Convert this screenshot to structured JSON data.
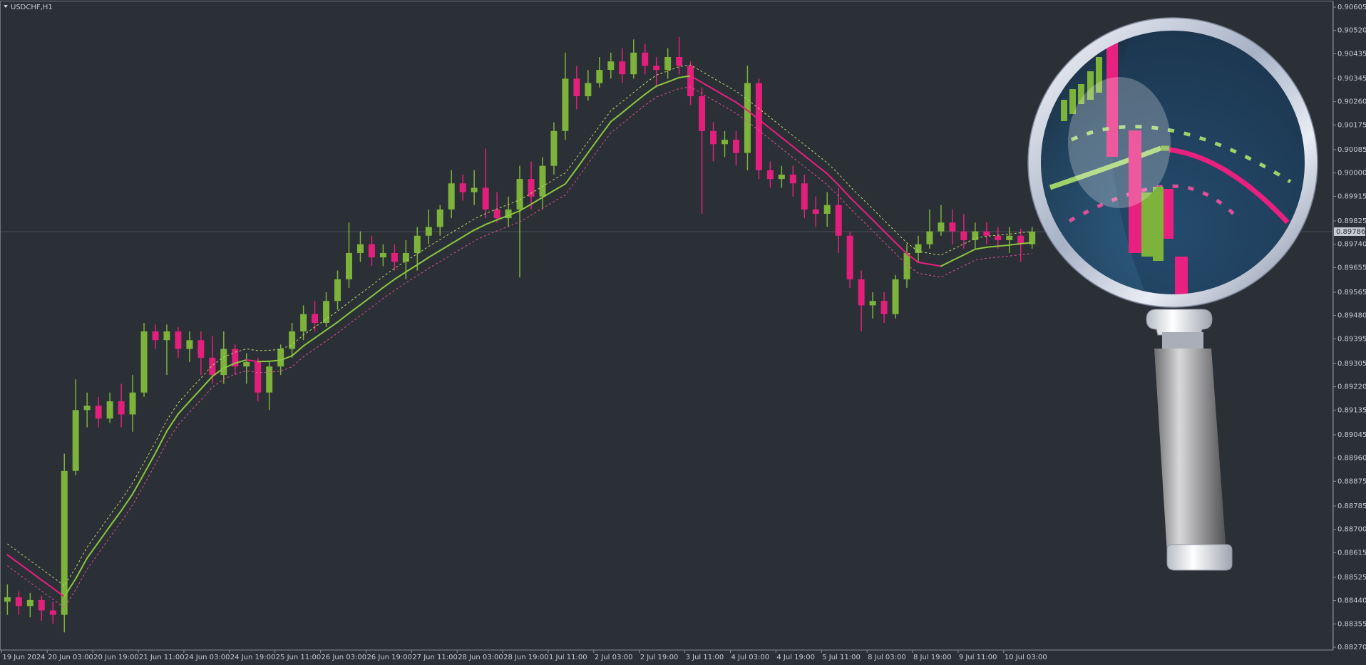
{
  "chart_data": {
    "type": "candlestick",
    "title": "USDCHF,H1",
    "categories": [
      "19 Jun 2024",
      null,
      null,
      null,
      "20 Jun 03:00",
      null,
      null,
      null,
      "20 Jun 19:00",
      null,
      null,
      null,
      "21 Jun 11:00",
      null,
      null,
      null,
      "24 Jun 03:00",
      null,
      null,
      null,
      "24 Jun 19:00",
      null,
      null,
      null,
      "25 Jun 11:00",
      null,
      null,
      null,
      "26 Jun 03:00",
      null,
      null,
      null,
      "26 Jun 19:00",
      null,
      null,
      null,
      "27 Jun 11:00",
      null,
      null,
      null,
      "28 Jun 03:00",
      null,
      null,
      null,
      "28 Jun 19:00",
      null,
      null,
      null,
      "1 Jul 11:00",
      null,
      null,
      null,
      "2 Jul 03:00",
      null,
      null,
      null,
      "2 Jul 19:00",
      null,
      null,
      null,
      "3 Jul 11:00",
      null,
      null,
      null,
      "4 Jul 03:00",
      null,
      null,
      null,
      "4 Jul 19:00",
      null,
      null,
      null,
      "5 Jul 11:00",
      null,
      null,
      null,
      "8 Jul 03:00",
      null,
      null,
      null,
      "8 Jul 19:00",
      null,
      null,
      null,
      "9 Jul 11:00",
      null,
      null,
      null,
      "10 Jul 03:00",
      null,
      null
    ],
    "open": [
      0.88436,
      0.88452,
      0.8842,
      0.88442,
      0.88404,
      0.88388,
      0.88913,
      0.89135,
      0.89151,
      0.89104,
      0.89167,
      0.89119,
      0.89199,
      0.89422,
      0.8939,
      0.89422,
      0.89358,
      0.8939,
      0.89326,
      0.89263,
      0.89358,
      0.89294,
      0.8931,
      0.89199,
      0.89294,
      0.89358,
      0.89422,
      0.89485,
      0.89453,
      0.89533,
      0.89612,
      0.89708,
      0.8974,
      0.89692,
      0.89708,
      0.89676,
      0.89708,
      0.89771,
      0.89803,
      0.89867,
      0.89962,
      0.8993,
      0.89946,
      0.89867,
      0.89835,
      0.89867,
      0.89978,
      0.89914,
      0.90026,
      0.90153,
      0.90344,
      0.9028,
      0.90328,
      0.90376,
      0.90407,
      0.9036,
      0.90439,
      0.90391,
      0.90376,
      0.90423,
      0.90391,
      0.9028,
      0.90153,
      0.90105,
      0.90121,
      0.90073,
      0.90328,
      0.9001,
      0.89978,
      0.89994,
      0.89962,
      0.89867,
      0.89851,
      0.89883,
      0.89771,
      0.89612,
      0.89517,
      0.89533,
      0.89485,
      0.89612,
      0.89708,
      0.8974,
      0.89787,
      0.89819,
      0.89787,
      0.89755,
      0.89787,
      0.89771,
      0.89755,
      0.89771,
      0.8974
    ],
    "high": [
      0.88499,
      0.88474,
      0.88468,
      0.88458,
      0.88436,
      0.88976,
      0.89247,
      0.89199,
      0.89183,
      0.89199,
      0.89231,
      0.89263,
      0.89453,
      0.89447,
      0.89447,
      0.89437,
      0.89422,
      0.89422,
      0.89406,
      0.89422,
      0.89374,
      0.89342,
      0.89326,
      0.8931,
      0.89374,
      0.89453,
      0.89517,
      0.89533,
      0.89565,
      0.89644,
      0.89819,
      0.89787,
      0.89771,
      0.8974,
      0.8974,
      0.89755,
      0.89803,
      0.89867,
      0.89883,
      0.9001,
      0.89994,
      0.9001,
      0.90089,
      0.8993,
      0.89914,
      0.90026,
      0.90042,
      0.90058,
      0.90185,
      0.90439,
      0.90391,
      0.90376,
      0.90423,
      0.90439,
      0.90455,
      0.90487,
      0.90471,
      0.90423,
      0.90455,
      0.90496,
      0.90407,
      0.90312,
      0.90185,
      0.90153,
      0.90153,
      0.90391,
      0.90344,
      0.90042,
      0.90026,
      0.90026,
      0.89994,
      0.89914,
      0.8993,
      0.89946,
      0.89787,
      0.89644,
      0.89565,
      0.89565,
      0.89628,
      0.8974,
      0.89771,
      0.89867,
      0.89883,
      0.89867,
      0.89851,
      0.89819,
      0.89819,
      0.89803,
      0.89803,
      0.89797,
      0.89803
    ],
    "low": [
      0.88388,
      0.88388,
      0.88379,
      0.88366,
      0.88356,
      0.88324,
      0.88897,
      0.89072,
      0.89072,
      0.89088,
      0.89072,
      0.89056,
      0.89183,
      0.89358,
      0.89263,
      0.89326,
      0.8931,
      0.89263,
      0.89231,
      0.89231,
      0.89263,
      0.89231,
      0.89167,
      0.89135,
      0.89263,
      0.89326,
      0.8939,
      0.89422,
      0.89437,
      0.89501,
      0.89581,
      0.89676,
      0.8966,
      0.8966,
      0.89644,
      0.89612,
      0.89644,
      0.8974,
      0.89771,
      0.89835,
      0.89899,
      0.89883,
      0.89835,
      0.89819,
      0.89803,
      0.89619,
      0.89867,
      0.89867,
      0.89994,
      0.90121,
      0.90232,
      0.90264,
      0.90312,
      0.90344,
      0.90328,
      0.90344,
      0.9036,
      0.90312,
      0.90344,
      0.9036,
      0.90248,
      0.89851,
      0.90042,
      0.90058,
      0.90026,
      0.9001,
      0.89978,
      0.89946,
      0.89946,
      0.89914,
      0.89835,
      0.89803,
      0.89803,
      0.89708,
      0.89581,
      0.89422,
      0.89469,
      0.89453,
      0.89469,
      0.89581,
      0.89676,
      0.89724,
      0.89771,
      0.8974,
      0.89724,
      0.89724,
      0.8974,
      0.89724,
      0.89708,
      0.89676,
      0.89724
    ],
    "close": [
      0.88452,
      0.8842,
      0.88442,
      0.88404,
      0.88388,
      0.88913,
      0.89135,
      0.89151,
      0.89104,
      0.89167,
      0.89119,
      0.89199,
      0.89422,
      0.8939,
      0.89422,
      0.89358,
      0.8939,
      0.89326,
      0.89263,
      0.89358,
      0.89294,
      0.8931,
      0.89199,
      0.89294,
      0.89358,
      0.89422,
      0.89485,
      0.89453,
      0.89533,
      0.89612,
      0.89708,
      0.8974,
      0.89692,
      0.89708,
      0.89676,
      0.89708,
      0.89771,
      0.89803,
      0.89867,
      0.89962,
      0.8993,
      0.89946,
      0.89867,
      0.89835,
      0.89867,
      0.89978,
      0.89914,
      0.90026,
      0.90153,
      0.90344,
      0.9028,
      0.90328,
      0.90376,
      0.90407,
      0.9036,
      0.90439,
      0.90391,
      0.90376,
      0.90423,
      0.90391,
      0.9028,
      0.90153,
      0.90105,
      0.90121,
      0.90073,
      0.90328,
      0.9001,
      0.89978,
      0.89994,
      0.89962,
      0.89867,
      0.89851,
      0.89883,
      0.89771,
      0.89612,
      0.89517,
      0.89533,
      0.89485,
      0.89612,
      0.89708,
      0.8974,
      0.89787,
      0.89819,
      0.89787,
      0.89755,
      0.89787,
      0.89771,
      0.89755,
      0.89771,
      0.8974,
      0.89786
    ],
    "up_color": "#7db33a",
    "down_color": "#e2207c",
    "series": [
      {
        "color": "#8cc63f",
        "down_color": "#e8207f",
        "values": [
          0.88607,
          0.88576,
          0.88546,
          0.88515,
          0.88485,
          0.88454,
          0.8852,
          0.88595,
          0.88653,
          0.88711,
          0.88768,
          0.88829,
          0.88903,
          0.88978,
          0.89058,
          0.89121,
          0.89167,
          0.89212,
          0.89258,
          0.89288,
          0.89306,
          0.89318,
          0.89312,
          0.89313,
          0.89317,
          0.89333,
          0.89369,
          0.89398,
          0.89427,
          0.89456,
          0.89488,
          0.89519,
          0.8955,
          0.89582,
          0.89612,
          0.89639,
          0.89665,
          0.89692,
          0.89717,
          0.89742,
          0.89767,
          0.89792,
          0.89812,
          0.89829,
          0.89845,
          0.89862,
          0.89886,
          0.89911,
          0.89936,
          0.8996,
          0.90016,
          0.90074,
          0.90131,
          0.90187,
          0.9022,
          0.90254,
          0.90287,
          0.90317,
          0.90332,
          0.90348,
          0.90354,
          0.9033,
          0.90306,
          0.90282,
          0.90258,
          0.90228,
          0.90195,
          0.90162,
          0.90129,
          0.90096,
          0.90063,
          0.9003,
          0.89997,
          0.89956,
          0.89911,
          0.8987,
          0.89829,
          0.89787,
          0.89746,
          0.89705,
          0.89674,
          0.89667,
          0.8966,
          0.89681,
          0.89701,
          0.89722,
          0.89729,
          0.89733,
          0.89737,
          0.89742,
          0.89746
        ]
      },
      {
        "color": "#b9dc6a",
        "dashed": true,
        "values": [
          0.88647,
          0.88616,
          0.88586,
          0.88555,
          0.88525,
          0.88494,
          0.8856,
          0.88635,
          0.88693,
          0.88751,
          0.88808,
          0.88869,
          0.88943,
          0.89018,
          0.89098,
          0.89161,
          0.89207,
          0.89252,
          0.89298,
          0.89328,
          0.89346,
          0.89358,
          0.89352,
          0.89353,
          0.89357,
          0.89373,
          0.89409,
          0.89438,
          0.89467,
          0.89496,
          0.89528,
          0.89559,
          0.8959,
          0.89622,
          0.89652,
          0.89679,
          0.89705,
          0.89732,
          0.89757,
          0.89782,
          0.89807,
          0.89832,
          0.89852,
          0.89869,
          0.89885,
          0.89902,
          0.89926,
          0.89951,
          0.89976,
          0.9,
          0.90056,
          0.90114,
          0.90171,
          0.90227,
          0.9026,
          0.90294,
          0.90327,
          0.90357,
          0.90372,
          0.90388,
          0.90394,
          0.9037,
          0.90346,
          0.90322,
          0.90298,
          0.90268,
          0.90235,
          0.90202,
          0.90169,
          0.90136,
          0.90103,
          0.9007,
          0.90037,
          0.89996,
          0.89951,
          0.8991,
          0.89869,
          0.89827,
          0.89786,
          0.89745,
          0.89714,
          0.89707,
          0.897,
          0.89721,
          0.89741,
          0.89762,
          0.89769,
          0.89773,
          0.89777,
          0.89782,
          0.89786
        ]
      },
      {
        "color": "#e0509a",
        "dashed": true,
        "values": [
          0.88567,
          0.88536,
          0.88506,
          0.88475,
          0.88445,
          0.88414,
          0.8848,
          0.88555,
          0.88613,
          0.88671,
          0.88728,
          0.88789,
          0.88863,
          0.88938,
          0.89018,
          0.89081,
          0.89127,
          0.89172,
          0.89218,
          0.89248,
          0.89266,
          0.89278,
          0.89272,
          0.89273,
          0.89277,
          0.89293,
          0.89329,
          0.89358,
          0.89387,
          0.89416,
          0.89448,
          0.89479,
          0.8951,
          0.89542,
          0.89572,
          0.89599,
          0.89625,
          0.89652,
          0.89677,
          0.89702,
          0.89727,
          0.89752,
          0.89772,
          0.89789,
          0.89805,
          0.89822,
          0.89846,
          0.89871,
          0.89896,
          0.8992,
          0.89976,
          0.90034,
          0.90091,
          0.90147,
          0.9018,
          0.90214,
          0.90247,
          0.90277,
          0.90292,
          0.90308,
          0.90314,
          0.9029,
          0.90266,
          0.90242,
          0.90218,
          0.90188,
          0.90155,
          0.90122,
          0.90089,
          0.90056,
          0.90023,
          0.8999,
          0.89957,
          0.89916,
          0.89871,
          0.8983,
          0.89789,
          0.89747,
          0.89706,
          0.89665,
          0.89634,
          0.89627,
          0.8962,
          0.89641,
          0.89661,
          0.89682,
          0.89689,
          0.89693,
          0.89697,
          0.89702,
          0.89706
        ]
      }
    ],
    "last_price": 0.89786,
    "ylim": [
      0.8827,
      0.90605
    ],
    "yticks": [
      0.90605,
      {
        "value": 0.9052,
        "label": "0.90520"
      },
      0.90435,
      0.90345,
      {
        "value": 0.9026,
        "label": "0.90260"
      },
      0.90175,
      0.90085,
      {
        "value": 0.9,
        "label": "0.90000"
      },
      0.89915,
      0.89825,
      {
        "value": 0.8974,
        "label": "0.89740"
      },
      0.89655,
      0.89565,
      {
        "value": 0.8948,
        "label": "0.89480"
      },
      0.89395,
      0.89305,
      {
        "value": 0.8922,
        "label": "0.89220"
      },
      0.89135,
      0.89045,
      {
        "value": 0.8896,
        "label": "0.88960"
      },
      0.88875,
      0.88785,
      {
        "value": 0.887,
        "label": "0.88700"
      },
      0.88615,
      0.88525,
      {
        "value": 0.8844,
        "label": "0.88440"
      },
      0.88355,
      {
        "value": 0.8827,
        "label": "0.88270"
      }
    ],
    "grid": false
  }
}
